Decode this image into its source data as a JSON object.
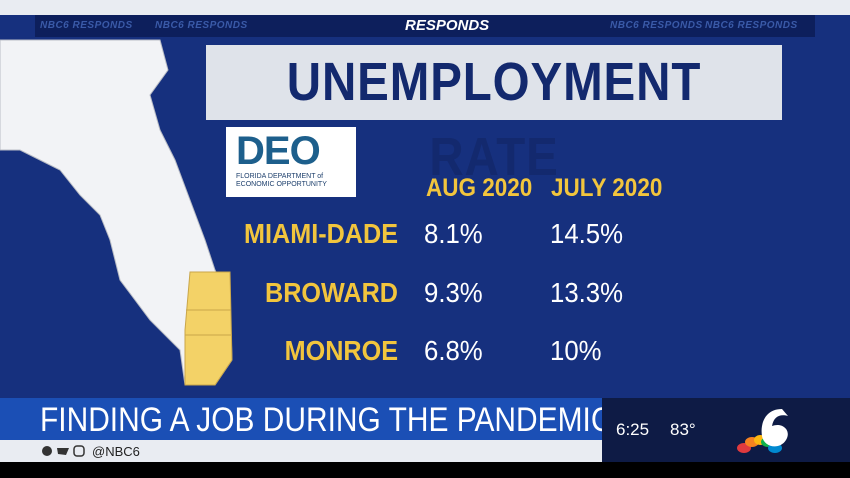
{
  "top_bar": {
    "faded_text": "NBC6 RESPONDS",
    "center_text": "RESPONDS"
  },
  "header": {
    "title": "UNEMPLOYMENT RATE"
  },
  "logo": {
    "acronym": "DEO",
    "subtitle": "FLORIDA DEPARTMENT of ECONOMIC OPPORTUNITY"
  },
  "table": {
    "columns": [
      "AUG 2020",
      "JULY 2020"
    ],
    "rows": [
      [
        "MIAMI-DADE",
        "8.1%",
        "14.5%"
      ],
      [
        "BROWARD",
        "9.3%",
        "13.3%"
      ],
      [
        "MONROE",
        "6.8%",
        "10%"
      ]
    ]
  },
  "lower_third": {
    "headline": "FINDING A JOB DURING THE PANDEMIC",
    "time": "6:25",
    "temperature": "83°",
    "social_handle": "@NBC6"
  }
}
